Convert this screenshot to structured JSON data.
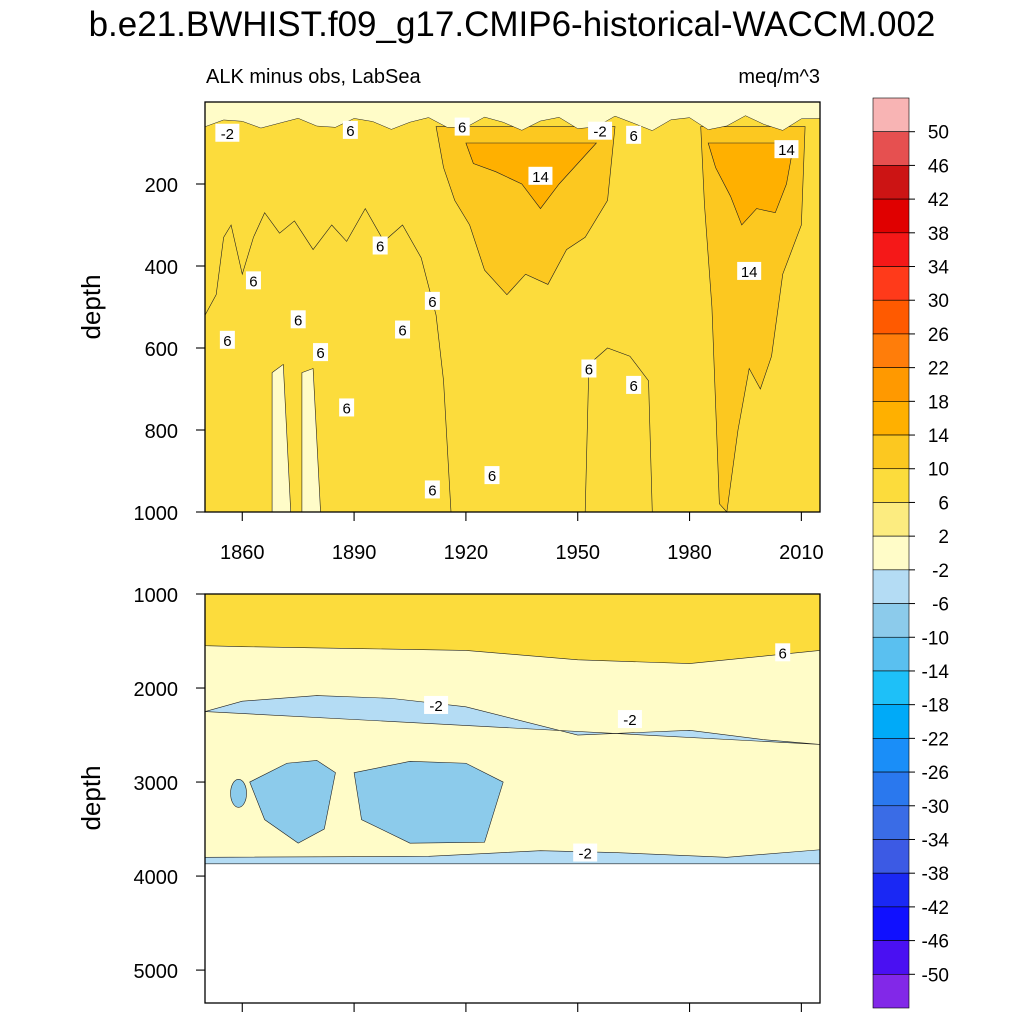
{
  "title": "b.e21.BWHIST.f09_g17.CMIP6-historical-WACCM.002",
  "chart_data": {
    "type": "heatmap",
    "variable": "ALK minus obs, LabSea",
    "units": "meq/m^3",
    "x_tick_labels": [
      "1860",
      "1890",
      "1920",
      "1950",
      "1980",
      "2010"
    ],
    "x_ticks": [
      1860,
      1890,
      1920,
      1950,
      1980,
      2010
    ],
    "xlim": [
      1850,
      2015
    ],
    "colorbar": {
      "levels": [
        "50",
        "46",
        "42",
        "38",
        "34",
        "30",
        "26",
        "22",
        "18",
        "14",
        "10",
        "6",
        "2",
        "-2",
        "-6",
        "-10",
        "-14",
        "-18",
        "-22",
        "-26",
        "-30",
        "-34",
        "-38",
        "-42",
        "-46",
        "-50"
      ],
      "colors": [
        "#f8b4b4",
        "#e65050",
        "#cc1414",
        "#e00000",
        "#f51818",
        "#ff3a1a",
        "#ff5a00",
        "#ff7d0a",
        "#ff9900",
        "#ffb000",
        "#fcc820",
        "#fcdc3c",
        "#fcec80",
        "#fffcc8",
        "#b4dcf4",
        "#8ccbeb",
        "#5ac0f0",
        "#1ec0f8",
        "#00aaf8",
        "#1a8ef8",
        "#2a78ee",
        "#3a6ce6",
        "#3c5ae4",
        "#1a28f4",
        "#1010ff",
        "#4a10f2",
        "#8228e8"
      ]
    },
    "panels": [
      {
        "name": "upper",
        "ylabel": "depth",
        "ylim": [
          0,
          1000
        ],
        "y_ticks": [
          200,
          400,
          600,
          800,
          1000
        ],
        "y_tick_labels": [
          "200",
          "400",
          "600",
          "800",
          "1000"
        ],
        "contour_labels": [
          {
            "text": "-2",
            "year": 1856,
            "depth": 75
          },
          {
            "text": "6",
            "year": 1889,
            "depth": 68
          },
          {
            "text": "6",
            "year": 1919,
            "depth": 60
          },
          {
            "text": "-2",
            "year": 1956,
            "depth": 70
          },
          {
            "text": "6",
            "year": 1965,
            "depth": 80
          },
          {
            "text": "14",
            "year": 2006,
            "depth": 115
          },
          {
            "text": "14",
            "year": 1940,
            "depth": 180
          },
          {
            "text": "6",
            "year": 1897,
            "depth": 350
          },
          {
            "text": "14",
            "year": 1996,
            "depth": 412
          },
          {
            "text": "6",
            "year": 1863,
            "depth": 435
          },
          {
            "text": "6",
            "year": 1911,
            "depth": 485
          },
          {
            "text": "6",
            "year": 1875,
            "depth": 530
          },
          {
            "text": "6",
            "year": 1903,
            "depth": 555
          },
          {
            "text": "6",
            "year": 1856,
            "depth": 580
          },
          {
            "text": "6",
            "year": 1881,
            "depth": 610
          },
          {
            "text": "6",
            "year": 1953,
            "depth": 650
          },
          {
            "text": "6",
            "year": 1965,
            "depth": 690
          },
          {
            "text": "6",
            "year": 1888,
            "depth": 745
          },
          {
            "text": "6",
            "year": 1927,
            "depth": 910
          },
          {
            "text": "6",
            "year": 1911,
            "depth": 945
          }
        ]
      },
      {
        "name": "lower",
        "ylabel": "depth",
        "ylim": [
          1000,
          5350
        ],
        "y_ticks": [
          1000,
          2000,
          3000,
          4000,
          5000
        ],
        "y_tick_labels": [
          "1000",
          "2000",
          "3000",
          "4000",
          "5000"
        ],
        "bottom_of_data_depth": 3870,
        "contour_labels": [
          {
            "text": "6",
            "year": 2005,
            "depth": 1620
          },
          {
            "text": "-2",
            "year": 1912,
            "depth": 2180
          },
          {
            "text": "-2",
            "year": 1964,
            "depth": 2330
          },
          {
            "text": "-2",
            "year": 1952,
            "depth": 3750
          }
        ]
      }
    ]
  }
}
